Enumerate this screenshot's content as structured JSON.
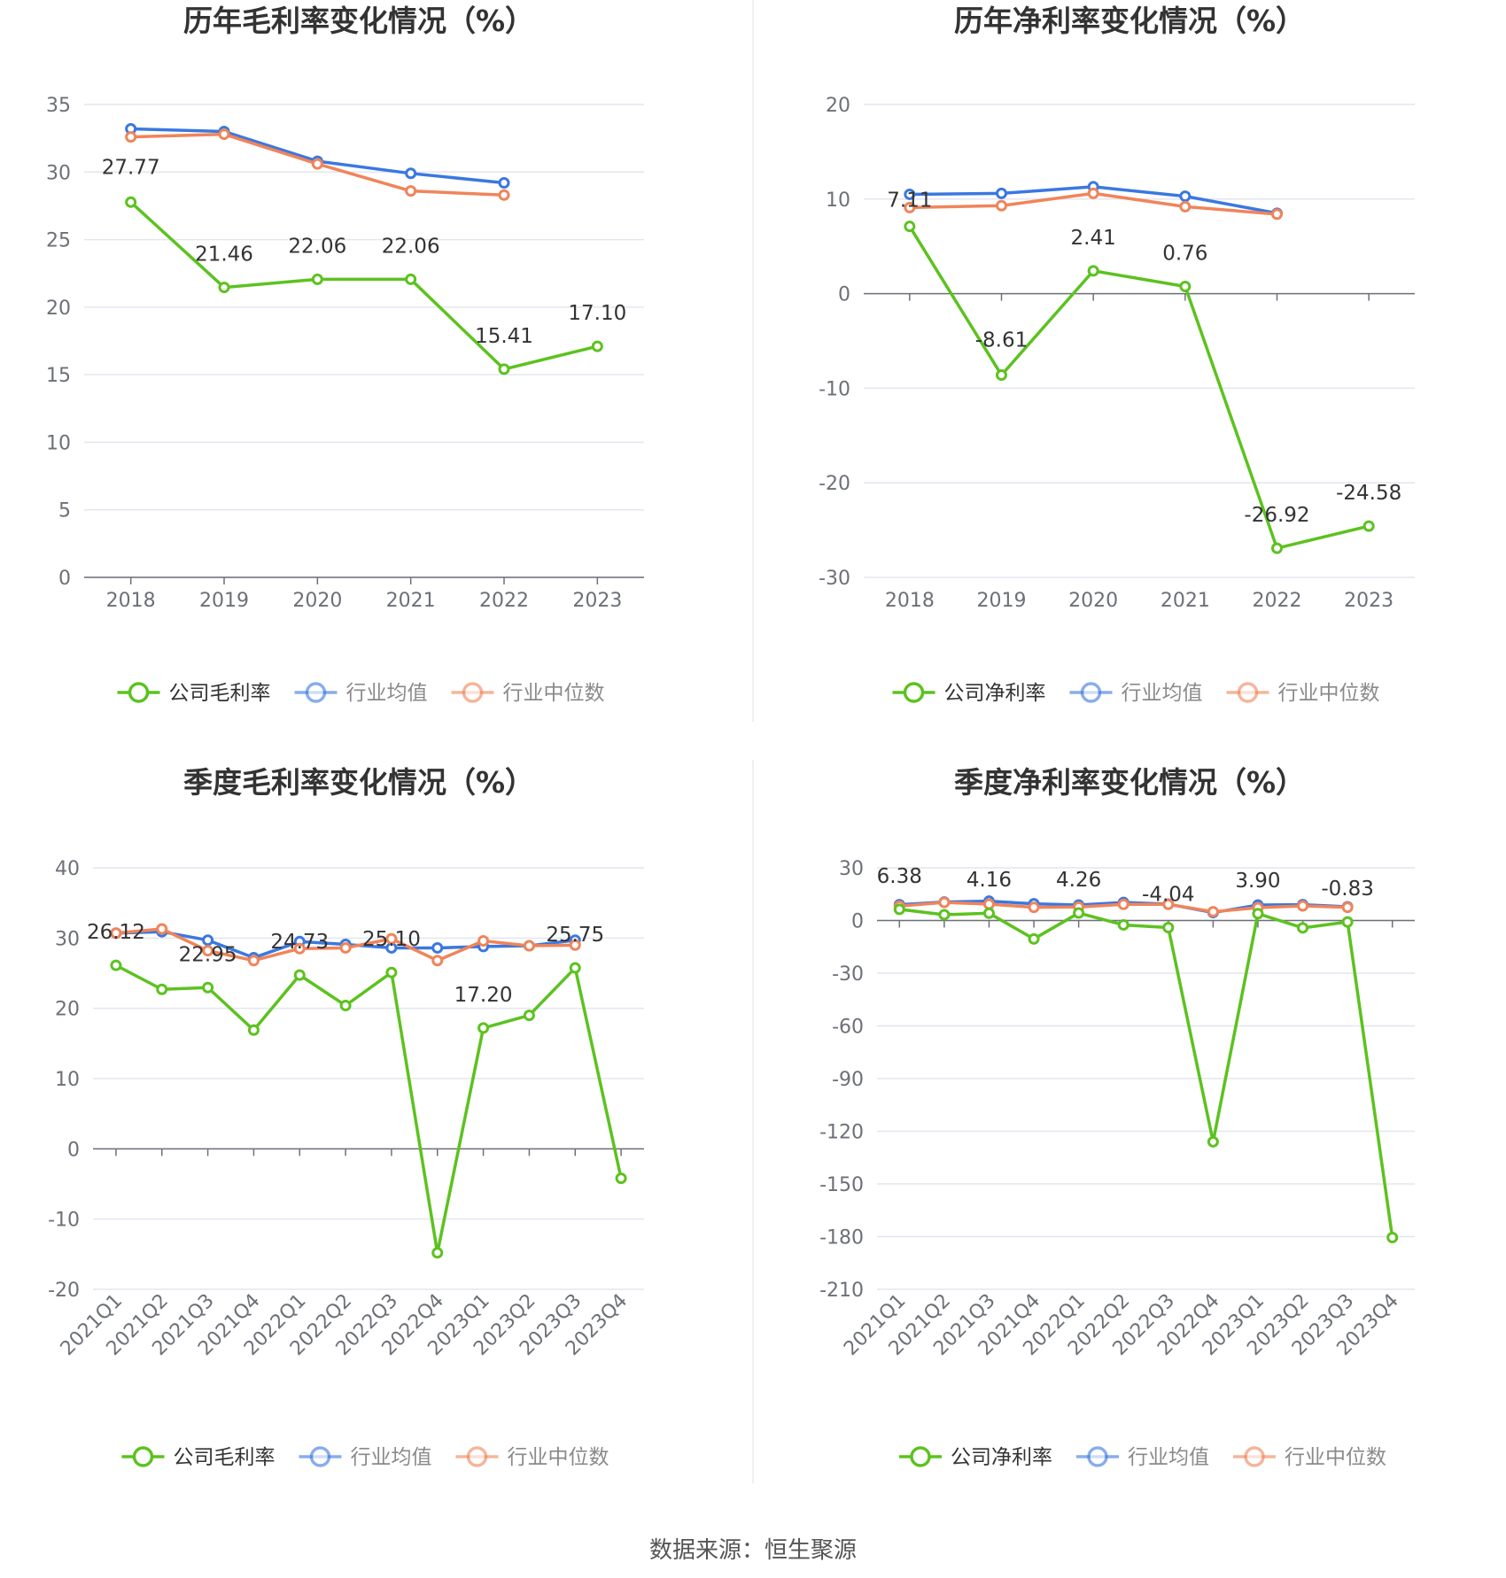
{
  "source_text": "数据来源：恒生聚源",
  "colors": {
    "company": "#5cc21f",
    "industry_avg": "#3a78e0",
    "industry_median": "#f0845a",
    "grid": "#e3e6ef",
    "axis": "#6e7079"
  },
  "chart_data": [
    {
      "type": "line",
      "title": "历年毛利率变化情况（%）",
      "categories": [
        "2018",
        "2019",
        "2020",
        "2021",
        "2022",
        "2023"
      ],
      "ylim": [
        0,
        35
      ],
      "yticks": [
        0,
        5,
        10,
        15,
        20,
        25,
        30,
        35
      ],
      "grid": true,
      "legend_position": "bottom-center",
      "series": [
        {
          "name": "公司毛利率",
          "role": "company",
          "values": [
            27.77,
            21.46,
            22.06,
            22.06,
            15.41,
            17.1
          ],
          "labels": [
            "27.77",
            "21.46",
            "22.06",
            "22.06",
            "15.41",
            "17.10"
          ]
        },
        {
          "name": "行业均值",
          "role": "industry_avg",
          "values": [
            33.2,
            33.0,
            30.8,
            29.9,
            29.2,
            null
          ]
        },
        {
          "name": "行业中位数",
          "role": "industry_median",
          "values": [
            32.6,
            32.8,
            30.6,
            28.6,
            28.3,
            null
          ]
        }
      ]
    },
    {
      "type": "line",
      "title": "历年净利率变化情况（%）",
      "categories": [
        "2018",
        "2019",
        "2020",
        "2021",
        "2022",
        "2023"
      ],
      "ylim": [
        -30,
        20
      ],
      "yticks": [
        -30,
        -20,
        -10,
        0,
        10,
        20
      ],
      "grid": true,
      "legend_position": "bottom-center",
      "series": [
        {
          "name": "公司净利率",
          "role": "company",
          "values": [
            7.11,
            -8.61,
            2.41,
            0.76,
            -26.92,
            -24.58
          ],
          "labels": [
            "7.11",
            "-8.61",
            "2.41",
            "0.76",
            "-26.92",
            "-24.58"
          ]
        },
        {
          "name": "行业均值",
          "role": "industry_avg",
          "values": [
            10.5,
            10.6,
            11.3,
            10.3,
            8.5,
            null
          ]
        },
        {
          "name": "行业中位数",
          "role": "industry_median",
          "values": [
            9.1,
            9.3,
            10.6,
            9.2,
            8.4,
            null
          ]
        }
      ]
    },
    {
      "type": "line",
      "title": "季度毛利率变化情况（%）",
      "categories": [
        "2021Q1",
        "2021Q2",
        "2021Q3",
        "2021Q4",
        "2022Q1",
        "2022Q2",
        "2022Q3",
        "2022Q4",
        "2023Q1",
        "2023Q2",
        "2023Q3",
        "2023Q4"
      ],
      "ylim": [
        -20,
        40
      ],
      "yticks": [
        -20,
        -10,
        0,
        10,
        20,
        30,
        40
      ],
      "grid": true,
      "legend_position": "bottom-center",
      "series": [
        {
          "name": "公司毛利率",
          "role": "company",
          "values": [
            26.12,
            22.7,
            22.95,
            16.9,
            24.73,
            20.4,
            25.1,
            -14.8,
            17.2,
            19.0,
            25.75,
            -4.2
          ],
          "labels": [
            "26.12",
            "",
            "22.95",
            "",
            "24.73",
            "",
            "25.10",
            "",
            "17.20",
            "",
            "25.75",
            ""
          ]
        },
        {
          "name": "行业均值",
          "role": "industry_avg",
          "values": [
            30.7,
            30.9,
            29.7,
            27.2,
            29.5,
            29.1,
            28.6,
            28.6,
            28.8,
            28.9,
            29.7,
            null
          ]
        },
        {
          "name": "行业中位数",
          "role": "industry_median",
          "values": [
            30.7,
            31.3,
            28.2,
            26.8,
            28.5,
            28.6,
            29.9,
            26.8,
            29.6,
            28.9,
            29.0,
            null
          ]
        }
      ]
    },
    {
      "type": "line",
      "title": "季度净利率变化情况（%）",
      "categories": [
        "2021Q1",
        "2021Q2",
        "2021Q3",
        "2021Q4",
        "2022Q1",
        "2022Q2",
        "2022Q3",
        "2022Q4",
        "2023Q1",
        "2023Q2",
        "2023Q3",
        "2023Q4"
      ],
      "ylim": [
        -210,
        30
      ],
      "yticks": [
        -210,
        -180,
        -150,
        -120,
        -90,
        -60,
        -30,
        0,
        30
      ],
      "grid": true,
      "legend_position": "bottom-center",
      "series": [
        {
          "name": "公司净利率",
          "role": "company",
          "values": [
            6.38,
            3.3,
            4.16,
            -10.5,
            4.26,
            -2.5,
            -4.04,
            -126.0,
            3.9,
            -4.2,
            -0.83,
            -180.5
          ],
          "labels": [
            "6.38",
            "",
            "4.16",
            "",
            "4.26",
            "",
            "-4.04",
            "",
            "3.90",
            "",
            "-0.83",
            ""
          ]
        },
        {
          "name": "行业均值",
          "role": "industry_avg",
          "values": [
            9.0,
            10.5,
            11.0,
            9.5,
            8.8,
            10.3,
            9.3,
            4.5,
            8.8,
            9.0,
            7.8,
            null
          ]
        },
        {
          "name": "行业中位数",
          "role": "industry_median",
          "values": [
            8.2,
            10.3,
            9.3,
            7.5,
            7.7,
            9.2,
            9.2,
            5.0,
            7.3,
            8.3,
            7.5,
            null
          ]
        }
      ]
    }
  ]
}
